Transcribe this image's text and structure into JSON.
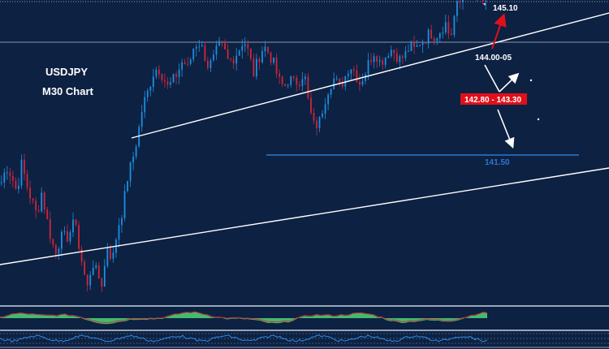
{
  "chart_data": {
    "type": "candlestick",
    "title": "USDJPY",
    "subtitle": "M30 Chart",
    "colors": {
      "background": "#0d2142",
      "bull": "#1d8fe0",
      "bear": "#d0263a",
      "trendline": "#ffffff",
      "support": "#2d78d0",
      "label_red_bg": "#e0101a",
      "osc_green": "#48cc72",
      "osc_red": "#d03040"
    },
    "price_labels": {
      "target_up": "145.10",
      "pivot": "144.00-05",
      "range": "142.80 - 143.30",
      "support": "141.50"
    },
    "levels": {
      "target_up": 145.1,
      "pivot": 144.03,
      "range_low": 142.8,
      "range_high": 143.3,
      "support": 141.5
    },
    "price_path": [
      137.6,
      138.3,
      137.9,
      137.2,
      138.4,
      137.5,
      136.8,
      136.2,
      137.2,
      136.0,
      135.0,
      134.4,
      135.8,
      134.7,
      136.2,
      135.3,
      134.1,
      133.0,
      134.2,
      133.6,
      133.2,
      134.9,
      134.2,
      135.6,
      136.4,
      137.8,
      138.6,
      139.6,
      140.9,
      141.5,
      142.3,
      142.6,
      142.2,
      141.7,
      142.0,
      142.4,
      142.9,
      142.5,
      143.4,
      143.7,
      143.3,
      142.6,
      142.9,
      143.5,
      143.4,
      142.8,
      143.0,
      143.3,
      143.8,
      143.2,
      142.3,
      143.0,
      143.5,
      143.2,
      142.7,
      142.0,
      141.7,
      142.1,
      141.9,
      142.0,
      142.4,
      140.8,
      140.0,
      140.2,
      141.1,
      141.8,
      142.1,
      141.7,
      142.1,
      142.7,
      142.4,
      141.9,
      142.3,
      142.9,
      143.3,
      142.8,
      143.0,
      143.4,
      143.2,
      142.9,
      143.1,
      143.5,
      143.3,
      143.7,
      143.8,
      144.1,
      143.9,
      144.2,
      144.5,
      143.8,
      145.1,
      145.4,
      145.8,
      145.9,
      145.7,
      145.6,
      145.2
    ]
  }
}
